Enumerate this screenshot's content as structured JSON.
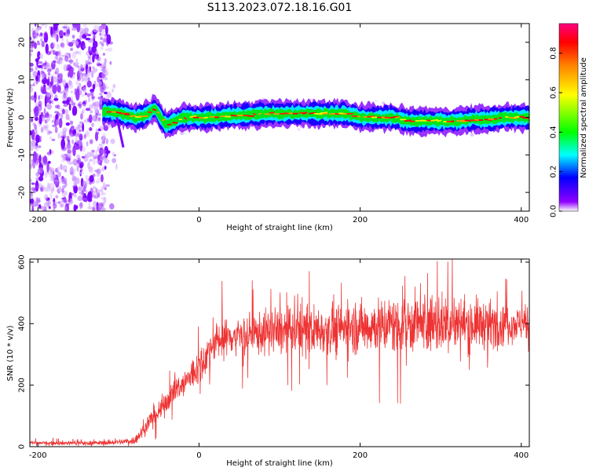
{
  "title": "S113.2023.072.18.16.G01",
  "chart_data": [
    {
      "type": "heatmap",
      "title": "",
      "xlabel": "Height of straight line (km)",
      "ylabel": "Frequency (Hz)",
      "xlim": [
        -210,
        410
      ],
      "ylim": [
        -25,
        25
      ],
      "x_ticks": [
        -200,
        0,
        200,
        400
      ],
      "y_ticks": [
        -20,
        -10,
        0,
        10,
        20
      ],
      "colorbar": {
        "label": "Normalized spectral amplitude",
        "range": [
          0,
          0.95
        ],
        "ticks": [
          0.0,
          0.2,
          0.4,
          0.6,
          0.8
        ],
        "tick_labels": [
          "0.0",
          "0.2",
          "0.4",
          "0.6",
          "0.8"
        ],
        "colormap": [
          "#ffffff",
          "#8000ff",
          "#0000ff",
          "#00ffff",
          "#00ff00",
          "#ffff00",
          "#ff8000",
          "#ff0000",
          "#ff0080"
        ]
      },
      "noise_region_x": [
        -210,
        -115
      ],
      "signal_trace": {
        "x": [
          -120,
          -110,
          -100,
          -90,
          -80,
          -70,
          -60,
          -55,
          -50,
          -45,
          -40,
          -30,
          -20,
          0,
          20,
          40,
          60,
          80,
          100,
          120,
          140,
          160,
          180,
          200,
          220,
          240,
          260,
          280,
          300,
          320,
          340,
          360,
          380,
          400,
          410
        ],
        "y": [
          1.5,
          1.5,
          1.2,
          0.5,
          0,
          0.3,
          1.5,
          2.5,
          1,
          -1,
          -2,
          -1,
          0,
          0,
          0,
          0.5,
          0.5,
          1,
          1,
          1,
          1,
          1,
          1,
          0,
          0,
          0,
          -1,
          -1,
          -1,
          -1,
          -0.5,
          -0.5,
          0,
          0,
          0
        ]
      }
    },
    {
      "type": "line",
      "title": "",
      "xlabel": "Height of straight line (km)",
      "ylabel": "SNR (10 * v/v)",
      "xlim": [
        -210,
        410
      ],
      "ylim": [
        0,
        610
      ],
      "x_ticks": [
        -200,
        0,
        200,
        400
      ],
      "y_ticks": [
        0,
        200,
        400,
        600
      ],
      "color": "#ee3333",
      "envelope": {
        "x": [
          -210,
          -120,
          -100,
          -80,
          -70,
          -60,
          -50,
          -40,
          -30,
          -20,
          -10,
          0,
          10,
          20,
          30,
          40,
          60,
          80,
          100,
          150,
          200,
          250,
          300,
          350,
          400,
          410
        ],
        "mean": [
          12,
          12,
          15,
          20,
          50,
          90,
          110,
          150,
          180,
          200,
          230,
          260,
          300,
          340,
          350,
          360,
          365,
          370,
          375,
          380,
          390,
          400,
          400,
          400,
          400,
          400
        ],
        "spread": [
          8,
          8,
          10,
          15,
          25,
          35,
          40,
          45,
          50,
          55,
          60,
          65,
          70,
          70,
          70,
          70,
          75,
          80,
          85,
          90,
          95,
          110,
          110,
          90,
          60,
          60
        ]
      }
    }
  ]
}
